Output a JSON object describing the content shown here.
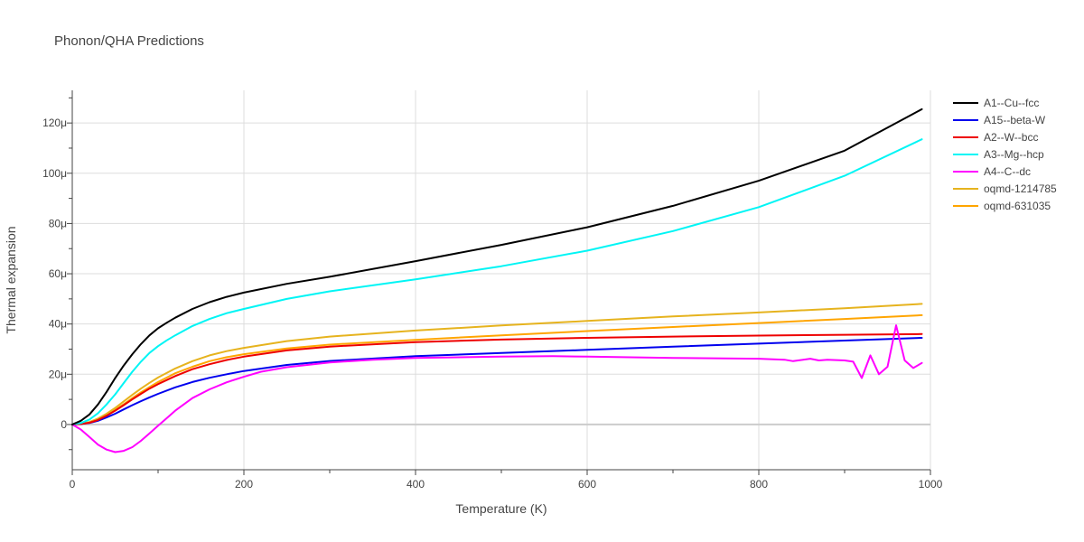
{
  "chart_data": {
    "type": "line",
    "title": "Phonon/QHA Predictions",
    "xlabel": "Temperature (K)",
    "ylabel": "Thermal expansion",
    "xlim": [
      0,
      1000
    ],
    "ylim": [
      -18,
      133
    ],
    "xticks": [
      0,
      200,
      400,
      600,
      800,
      1000
    ],
    "xtick_labels": [
      "0",
      "200",
      "400",
      "600",
      "800",
      "1000"
    ],
    "yticks": [
      0,
      20,
      40,
      60,
      80,
      100,
      120
    ],
    "ytick_labels": [
      "0",
      "20μ",
      "40μ",
      "60μ",
      "80μ",
      "100μ",
      "120μ"
    ],
    "y_unit_scale": "μ (×1e-6)",
    "grid": true,
    "legend_position": "right",
    "series": [
      {
        "name": "A1--Cu--fcc",
        "color": "#000000",
        "x": [
          0,
          10,
          20,
          30,
          40,
          50,
          60,
          70,
          80,
          90,
          100,
          110,
          120,
          140,
          160,
          180,
          200,
          250,
          300,
          400,
          500,
          600,
          700,
          800,
          900,
          990
        ],
        "y": [
          0,
          1.5,
          4,
          8,
          13,
          18.5,
          23.5,
          28,
          32,
          35.5,
          38.3,
          40.5,
          42.5,
          46,
          48.7,
          50.8,
          52.5,
          56,
          58.8,
          65,
          71.5,
          78.5,
          87,
          97,
          109,
          125.5
        ]
      },
      {
        "name": "A15--beta-W",
        "color": "#0000ee",
        "x": [
          0,
          10,
          20,
          30,
          40,
          50,
          60,
          70,
          80,
          90,
          100,
          120,
          140,
          160,
          180,
          200,
          250,
          300,
          400,
          500,
          600,
          700,
          800,
          900,
          990
        ],
        "y": [
          0,
          0.2,
          0.6,
          1.5,
          2.8,
          4.3,
          6,
          7.7,
          9.3,
          10.8,
          12.2,
          14.8,
          16.9,
          18.6,
          20,
          21.3,
          23.7,
          25.3,
          27.2,
          28.5,
          29.7,
          31,
          32.2,
          33.4,
          34.5
        ]
      },
      {
        "name": "A2--W--bcc",
        "color": "#ee0000",
        "x": [
          0,
          10,
          20,
          30,
          40,
          50,
          60,
          70,
          80,
          90,
          100,
          120,
          140,
          160,
          180,
          200,
          250,
          300,
          400,
          500,
          600,
          700,
          800,
          900,
          990
        ],
        "y": [
          0,
          0.2,
          0.7,
          1.8,
          3.5,
          5.5,
          7.7,
          10,
          12.2,
          14.3,
          16.1,
          19.3,
          22,
          24,
          25.7,
          27,
          29.5,
          31,
          32.8,
          33.8,
          34.5,
          35,
          35.4,
          35.7,
          36
        ]
      },
      {
        "name": "A3--Mg--hcp",
        "color": "#00f5f5",
        "x": [
          0,
          10,
          20,
          30,
          40,
          50,
          60,
          70,
          80,
          90,
          100,
          110,
          120,
          140,
          160,
          180,
          200,
          250,
          300,
          400,
          500,
          600,
          700,
          800,
          900,
          990
        ],
        "y": [
          0,
          0.6,
          2,
          4.5,
          8,
          12,
          16.5,
          21,
          25,
          28.5,
          31.2,
          33.5,
          35.5,
          39.2,
          42,
          44.3,
          46,
          50,
          53,
          57.8,
          63,
          69.2,
          77,
          86.5,
          99,
          113.5
        ]
      },
      {
        "name": "A4--C--dc",
        "color": "#ff00ff",
        "x": [
          0,
          10,
          20,
          30,
          40,
          50,
          60,
          70,
          80,
          90,
          100,
          110,
          120,
          140,
          160,
          180,
          200,
          220,
          250,
          300,
          350,
          400,
          500,
          560,
          600,
          700,
          800,
          830,
          840,
          860,
          870,
          880,
          900,
          910,
          920,
          930,
          940,
          950,
          960,
          970,
          980,
          990
        ],
        "y": [
          0,
          -2,
          -5,
          -8,
          -10,
          -11,
          -10.5,
          -9,
          -6.5,
          -3.5,
          -0.5,
          2.5,
          5.5,
          10.5,
          14,
          16.8,
          19,
          21,
          22.8,
          24.7,
          25.8,
          26.5,
          27,
          27.2,
          27,
          26.5,
          26.2,
          25.8,
          25.2,
          26.2,
          25.5,
          25.8,
          25.5,
          25,
          18.5,
          27.5,
          20,
          23,
          39.5,
          25.5,
          22.5,
          24.5
        ]
      },
      {
        "name": "oqmd-1214785",
        "color": "#e6b31e",
        "x": [
          0,
          10,
          20,
          30,
          40,
          50,
          60,
          70,
          80,
          90,
          100,
          120,
          140,
          160,
          180,
          200,
          250,
          300,
          400,
          500,
          600,
          700,
          800,
          900,
          990
        ],
        "y": [
          0,
          0.3,
          1,
          2.4,
          4.3,
          6.6,
          9.2,
          11.8,
          14.3,
          16.6,
          18.7,
          22.3,
          25.2,
          27.5,
          29.2,
          30.5,
          33.2,
          35,
          37.4,
          39.4,
          41.2,
          43,
          44.6,
          46.3,
          48
        ]
      },
      {
        "name": "oqmd-631035",
        "color": "#ffa500",
        "x": [
          0,
          10,
          20,
          30,
          40,
          50,
          60,
          70,
          80,
          90,
          100,
          120,
          140,
          160,
          180,
          200,
          250,
          300,
          400,
          500,
          600,
          700,
          800,
          900,
          990
        ],
        "y": [
          0,
          0.25,
          0.8,
          2,
          3.7,
          5.8,
          8.1,
          10.5,
          12.8,
          14.9,
          16.9,
          20.4,
          23,
          25.2,
          26.8,
          28,
          30.3,
          31.8,
          33.7,
          35.5,
          37.2,
          38.8,
          40.4,
          42,
          43.5
        ]
      }
    ]
  }
}
